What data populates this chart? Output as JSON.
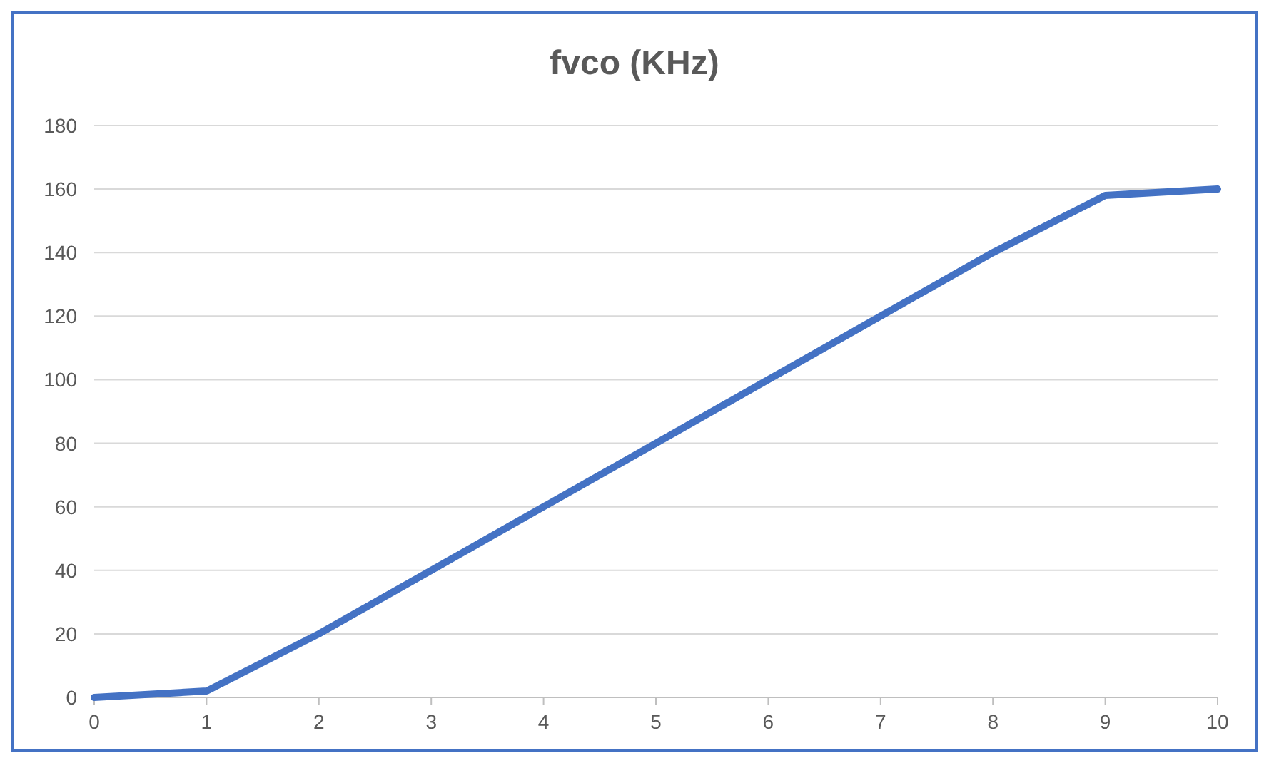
{
  "chart_data": {
    "type": "line",
    "title": "fvco (KHz)",
    "x": [
      0,
      1,
      2,
      3,
      4,
      5,
      6,
      7,
      8,
      9,
      10
    ],
    "series": [
      {
        "color": "#4472c4",
        "values": [
          0,
          2,
          20,
          40,
          60,
          80,
          100,
          120,
          140,
          158,
          160
        ]
      }
    ],
    "xlim": [
      0,
      10
    ],
    "xticks": [
      0,
      1,
      2,
      3,
      4,
      5,
      6,
      7,
      8,
      9,
      10
    ],
    "ylim": [
      0,
      180
    ],
    "yticks": [
      0,
      20,
      40,
      60,
      80,
      100,
      120,
      140,
      160,
      180
    ],
    "grid": "y",
    "marker": "none",
    "line_style": "solid"
  }
}
